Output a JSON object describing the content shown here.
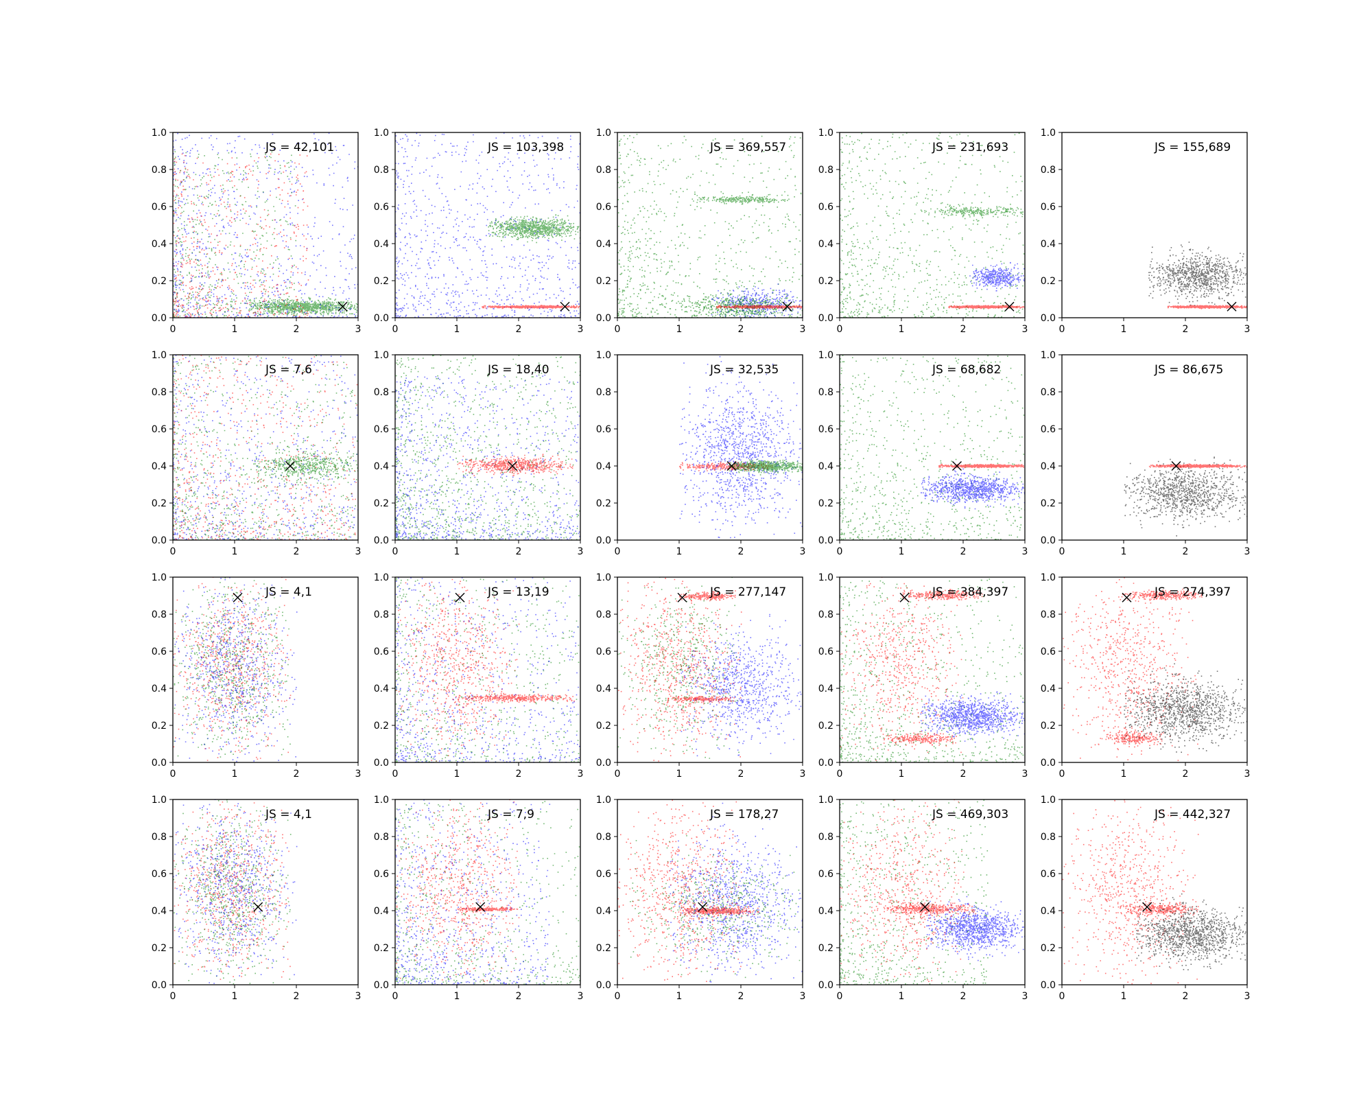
{
  "chart_data": {
    "type": "scatter",
    "layout": {
      "rows": 4,
      "cols": 5
    },
    "xlim": [
      0,
      3
    ],
    "ylim": [
      0,
      1
    ],
    "xticks": [
      "0",
      "1",
      "2",
      "3"
    ],
    "yticks": [
      "0.0",
      "0.2",
      "0.4",
      "0.6",
      "0.8",
      "1.0"
    ],
    "grid": false,
    "colors": {
      "red": "#ff0000",
      "green": "#008000",
      "blue": "#0000ff",
      "black": "#000000"
    },
    "marker": "x",
    "panels": [
      {
        "annotation": "JS = 42,101",
        "marker_point": [
          2.75,
          0.06
        ],
        "clusters": [
          {
            "color": "green",
            "x": [
              1.2,
              3.0
            ],
            "y": [
              0.02,
              0.1
            ],
            "n": 1000
          },
          {
            "color": "blue",
            "x": [
              0.0,
              3.0
            ],
            "y": [
              0.0,
              1.0
            ],
            "n": 800,
            "shape": "falloff"
          },
          {
            "color": "red",
            "x": [
              0.0,
              2.2
            ],
            "y": [
              0.0,
              0.9
            ],
            "n": 600,
            "shape": "falloff"
          },
          {
            "color": "green",
            "x": [
              0.0,
              2.0
            ],
            "y": [
              0.0,
              0.9
            ],
            "n": 500,
            "shape": "falloff"
          }
        ]
      },
      {
        "annotation": "JS = 103,398",
        "marker_point": [
          2.75,
          0.06
        ],
        "clusters": [
          {
            "color": "green",
            "x": [
              1.5,
              3.0
            ],
            "y": [
              0.43,
              0.54
            ],
            "n": 900
          },
          {
            "color": "blue",
            "x": [
              0.0,
              3.0
            ],
            "y": [
              0.0,
              1.0
            ],
            "n": 900,
            "shape": "falloff"
          },
          {
            "color": "red",
            "x": [
              1.4,
              3.0
            ],
            "y": [
              0.055,
              0.068
            ],
            "n": 700
          }
        ]
      },
      {
        "annotation": "JS = 369,557",
        "marker_point": [
          2.75,
          0.06
        ],
        "clusters": [
          {
            "color": "green",
            "x": [
              0.0,
              3.0
            ],
            "y": [
              0.0,
              1.0
            ],
            "n": 800,
            "shape": "falloff"
          },
          {
            "color": "green",
            "x": [
              1.2,
              2.9
            ],
            "y": [
              0.62,
              0.66
            ],
            "n": 250
          },
          {
            "color": "blue",
            "x": [
              1.5,
              3.0
            ],
            "y": [
              0.0,
              0.16
            ],
            "n": 400
          },
          {
            "color": "green",
            "x": [
              1.0,
              3.0
            ],
            "y": [
              0.0,
              0.12
            ],
            "n": 500
          },
          {
            "color": "red",
            "x": [
              1.6,
              3.0
            ],
            "y": [
              0.055,
              0.068
            ],
            "n": 700
          }
        ]
      },
      {
        "annotation": "JS = 231,693",
        "marker_point": [
          2.75,
          0.06
        ],
        "clusters": [
          {
            "color": "green",
            "x": [
              0.0,
              3.0
            ],
            "y": [
              0.0,
              1.0
            ],
            "n": 800,
            "shape": "falloff"
          },
          {
            "color": "green",
            "x": [
              1.3,
              3.0
            ],
            "y": [
              0.55,
              0.6
            ],
            "n": 250
          },
          {
            "color": "blue",
            "x": [
              2.1,
              3.0
            ],
            "y": [
              0.16,
              0.28
            ],
            "n": 400
          },
          {
            "color": "red",
            "x": [
              1.75,
              3.0
            ],
            "y": [
              0.055,
              0.068
            ],
            "n": 700
          }
        ]
      },
      {
        "annotation": "JS = 155,689",
        "marker_point": [
          2.75,
          0.06
        ],
        "clusters": [
          {
            "color": "black",
            "x": [
              1.4,
              3.0
            ],
            "y": [
              0.1,
              0.35
            ],
            "n": 900
          },
          {
            "color": "red",
            "x": [
              1.7,
              3.0
            ],
            "y": [
              0.055,
              0.068
            ],
            "n": 700
          }
        ]
      },
      {
        "annotation": "JS = 7,6",
        "marker_point": [
          1.9,
          0.4
        ],
        "clusters": [
          {
            "color": "blue",
            "x": [
              0.0,
              3.0
            ],
            "y": [
              0.0,
              1.0
            ],
            "n": 700,
            "shape": "falloff"
          },
          {
            "color": "red",
            "x": [
              0.0,
              3.0
            ],
            "y": [
              0.0,
              1.0
            ],
            "n": 700,
            "shape": "falloff"
          },
          {
            "color": "green",
            "x": [
              0.0,
              3.0
            ],
            "y": [
              0.0,
              1.0
            ],
            "n": 700,
            "shape": "falloff"
          },
          {
            "color": "green",
            "x": [
              1.3,
              3.0
            ],
            "y": [
              0.32,
              0.48
            ],
            "n": 500
          }
        ]
      },
      {
        "annotation": "JS = 18,40",
        "marker_point": [
          1.9,
          0.4
        ],
        "clusters": [
          {
            "color": "green",
            "x": [
              0.0,
              3.0
            ],
            "y": [
              0.0,
              1.0
            ],
            "n": 1000,
            "shape": "falloff"
          },
          {
            "color": "blue",
            "x": [
              0.0,
              3.0
            ],
            "y": [
              0.0,
              0.9
            ],
            "n": 900,
            "shape": "falloff"
          },
          {
            "color": "red",
            "x": [
              1.0,
              2.9
            ],
            "y": [
              0.36,
              0.45
            ],
            "n": 600
          }
        ]
      },
      {
        "annotation": "JS = 32,535",
        "marker_point": [
          1.85,
          0.4
        ],
        "clusters": [
          {
            "color": "blue",
            "x": [
              1.0,
              3.0
            ],
            "y": [
              0.05,
              0.85
            ],
            "n": 1100
          },
          {
            "color": "red",
            "x": [
              1.0,
              2.5
            ],
            "y": [
              0.38,
              0.42
            ],
            "n": 300
          },
          {
            "color": "green",
            "x": [
              1.8,
              3.0
            ],
            "y": [
              0.37,
              0.43
            ],
            "n": 700
          }
        ]
      },
      {
        "annotation": "JS = 68,682",
        "marker_point": [
          1.9,
          0.4
        ],
        "clusters": [
          {
            "color": "green",
            "x": [
              0.0,
              3.0
            ],
            "y": [
              0.0,
              1.0
            ],
            "n": 800,
            "shape": "falloff"
          },
          {
            "color": "blue",
            "x": [
              1.3,
              3.0
            ],
            "y": [
              0.2,
              0.35
            ],
            "n": 900
          },
          {
            "color": "red",
            "x": [
              1.6,
              3.0
            ],
            "y": [
              0.395,
              0.41
            ],
            "n": 700
          }
        ]
      },
      {
        "annotation": "JS = 86,675",
        "marker_point": [
          1.85,
          0.4
        ],
        "clusters": [
          {
            "color": "black",
            "x": [
              1.0,
              3.0
            ],
            "y": [
              0.1,
              0.4
            ],
            "n": 1000
          },
          {
            "color": "red",
            "x": [
              1.4,
              3.0
            ],
            "y": [
              0.395,
              0.41
            ],
            "n": 700
          }
        ]
      },
      {
        "annotation": "JS = 4,1",
        "marker_point": [
          1.05,
          0.89
        ],
        "clusters": [
          {
            "color": "red",
            "x": [
              0.0,
              1.9
            ],
            "y": [
              0.0,
              1.0
            ],
            "n": 700
          },
          {
            "color": "green",
            "x": [
              0.0,
              1.9
            ],
            "y": [
              0.0,
              1.0
            ],
            "n": 700
          },
          {
            "color": "blue",
            "x": [
              0.0,
              2.0
            ],
            "y": [
              0.0,
              1.0
            ],
            "n": 700
          }
        ]
      },
      {
        "annotation": "JS = 13,19",
        "marker_point": [
          1.05,
          0.89
        ],
        "clusters": [
          {
            "color": "red",
            "x": [
              0.0,
              2.0
            ],
            "y": [
              0.0,
              1.0
            ],
            "n": 700
          },
          {
            "color": "green",
            "x": [
              0.0,
              3.0
            ],
            "y": [
              0.0,
              1.0
            ],
            "n": 600,
            "shape": "falloff"
          },
          {
            "color": "blue",
            "x": [
              0.0,
              3.0
            ],
            "y": [
              0.0,
              1.0
            ],
            "n": 700,
            "shape": "falloff"
          },
          {
            "color": "red",
            "x": [
              1.0,
              2.9
            ],
            "y": [
              0.33,
              0.37
            ],
            "n": 400
          }
        ]
      },
      {
        "annotation": "JS = 277,147",
        "marker_point": [
          1.05,
          0.89
        ],
        "clusters": [
          {
            "color": "blue",
            "x": [
              1.0,
              3.0
            ],
            "y": [
              0.1,
              0.7
            ],
            "n": 800
          },
          {
            "color": "red",
            "x": [
              0.0,
              2.0
            ],
            "y": [
              0.0,
              1.0
            ],
            "n": 700
          },
          {
            "color": "green",
            "x": [
              0.0,
              2.0
            ],
            "y": [
              0.0,
              1.0
            ],
            "n": 500
          },
          {
            "color": "red",
            "x": [
              1.0,
              1.9
            ],
            "y": [
              0.88,
              0.92
            ],
            "n": 250
          },
          {
            "color": "red",
            "x": [
              0.8,
              1.9
            ],
            "y": [
              0.33,
              0.36
            ],
            "n": 200
          }
        ]
      },
      {
        "annotation": "JS = 384,397",
        "marker_point": [
          1.05,
          0.89
        ],
        "clusters": [
          {
            "color": "green",
            "x": [
              0.0,
              3.0
            ],
            "y": [
              0.0,
              1.0
            ],
            "n": 800,
            "shape": "falloff"
          },
          {
            "color": "blue",
            "x": [
              1.3,
              3.0
            ],
            "y": [
              0.15,
              0.35
            ],
            "n": 1000
          },
          {
            "color": "red",
            "x": [
              0.0,
              2.0
            ],
            "y": [
              0.0,
              1.0
            ],
            "n": 600
          },
          {
            "color": "red",
            "x": [
              1.0,
              2.3
            ],
            "y": [
              0.88,
              0.93
            ],
            "n": 300
          },
          {
            "color": "red",
            "x": [
              0.7,
              1.9
            ],
            "y": [
              0.1,
              0.16
            ],
            "n": 250
          }
        ]
      },
      {
        "annotation": "JS = 274,397",
        "marker_point": [
          1.05,
          0.89
        ],
        "clusters": [
          {
            "color": "red",
            "x": [
              0.0,
              2.2
            ],
            "y": [
              0.0,
              1.0
            ],
            "n": 700
          },
          {
            "color": "red",
            "x": [
              1.0,
              2.3
            ],
            "y": [
              0.88,
              0.93
            ],
            "n": 300
          },
          {
            "color": "red",
            "x": [
              0.7,
              1.6
            ],
            "y": [
              0.1,
              0.17
            ],
            "n": 250
          },
          {
            "color": "black",
            "x": [
              1.0,
              3.0
            ],
            "y": [
              0.1,
              0.45
            ],
            "n": 1100
          }
        ]
      },
      {
        "annotation": "JS = 4,1",
        "marker_point": [
          1.38,
          0.42
        ],
        "clusters": [
          {
            "color": "red",
            "x": [
              0.0,
              1.9
            ],
            "y": [
              0.0,
              1.0
            ],
            "n": 700
          },
          {
            "color": "green",
            "x": [
              0.0,
              1.9
            ],
            "y": [
              0.0,
              1.0
            ],
            "n": 700
          },
          {
            "color": "blue",
            "x": [
              0.0,
              2.0
            ],
            "y": [
              0.0,
              1.0
            ],
            "n": 700
          }
        ]
      },
      {
        "annotation": "JS = 7,9",
        "marker_point": [
          1.38,
          0.42
        ],
        "clusters": [
          {
            "color": "red",
            "x": [
              0.0,
              2.0
            ],
            "y": [
              0.0,
              1.0
            ],
            "n": 700
          },
          {
            "color": "green",
            "x": [
              0.0,
              3.0
            ],
            "y": [
              0.0,
              1.0
            ],
            "n": 600,
            "shape": "falloff"
          },
          {
            "color": "blue",
            "x": [
              0.0,
              2.5
            ],
            "y": [
              0.0,
              1.0
            ],
            "n": 700,
            "shape": "falloff"
          },
          {
            "color": "red",
            "x": [
              1.0,
              2.0
            ],
            "y": [
              0.4,
              0.42
            ],
            "n": 200
          }
        ]
      },
      {
        "annotation": "JS = 178,27",
        "marker_point": [
          1.38,
          0.42
        ],
        "clusters": [
          {
            "color": "blue",
            "x": [
              0.8,
              3.0
            ],
            "y": [
              0.05,
              0.8
            ],
            "n": 900
          },
          {
            "color": "green",
            "x": [
              0.2,
              3.0
            ],
            "y": [
              0.1,
              0.7
            ],
            "n": 500
          },
          {
            "color": "red",
            "x": [
              0.0,
              2.0
            ],
            "y": [
              0.0,
              1.0
            ],
            "n": 700
          },
          {
            "color": "red",
            "x": [
              1.0,
              2.3
            ],
            "y": [
              0.38,
              0.42
            ],
            "n": 400
          }
        ]
      },
      {
        "annotation": "JS = 469,303",
        "marker_point": [
          1.38,
          0.42
        ],
        "clusters": [
          {
            "color": "green",
            "x": [
              0.0,
              2.4
            ],
            "y": [
              0.0,
              1.0
            ],
            "n": 700,
            "shape": "falloff"
          },
          {
            "color": "blue",
            "x": [
              1.4,
              3.0
            ],
            "y": [
              0.18,
              0.42
            ],
            "n": 1000
          },
          {
            "color": "red",
            "x": [
              0.0,
              2.0
            ],
            "y": [
              0.0,
              1.0
            ],
            "n": 600
          },
          {
            "color": "red",
            "x": [
              0.7,
              2.2
            ],
            "y": [
              0.38,
              0.44
            ],
            "n": 400
          }
        ]
      },
      {
        "annotation": "JS = 442,327",
        "marker_point": [
          1.38,
          0.42
        ],
        "clusters": [
          {
            "color": "red",
            "x": [
              0.0,
              2.2
            ],
            "y": [
              0.0,
              1.0
            ],
            "n": 700
          },
          {
            "color": "red",
            "x": [
              1.0,
              2.2
            ],
            "y": [
              0.38,
              0.44
            ],
            "n": 300
          },
          {
            "color": "black",
            "x": [
              1.2,
              3.0
            ],
            "y": [
              0.12,
              0.42
            ],
            "n": 1100
          }
        ]
      }
    ]
  }
}
